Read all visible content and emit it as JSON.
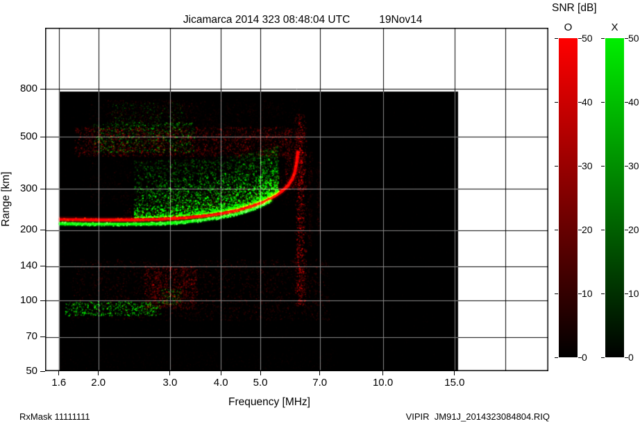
{
  "title": "Jicamarca 2014 323 08:48:04 UTC",
  "date_label": "19Nov14",
  "footer": {
    "left": "RxMask 11111111",
    "right": "VIPIR  JM91J_2014323084804.RIQ"
  },
  "axes": {
    "xlabel": "Frequency [MHz]",
    "ylabel": "Range [km]",
    "x_ticks": [
      1.6,
      2.0,
      3.0,
      4.0,
      5.0,
      7.0,
      10.0,
      15.0
    ],
    "x_tick_labels": [
      "1.6",
      "2.0",
      "3.0",
      "4.0",
      "5.0",
      "7.0",
      "10.0",
      "15.0"
    ],
    "grid_x": [
      1.6,
      2.0,
      3.0,
      4.0,
      5.0,
      7.0,
      10.0,
      15.0,
      20.0
    ],
    "y_ticks": [
      50,
      70,
      100,
      140,
      200,
      300,
      500,
      800
    ]
  },
  "colorbar": {
    "title": "SNR [dB]",
    "o_label": "O",
    "x_label": "X",
    "ticks": [
      0,
      10,
      20,
      30,
      40,
      50
    ],
    "max": 50,
    "o_color": "#ff0000",
    "x_color": "#00ee00"
  },
  "chart_data": {
    "type": "heatmap",
    "title": "Jicamarca ionogram 2014 day 323 08:48:04 UTC",
    "xlabel": "Frequency [MHz]",
    "ylabel": "Range [km]",
    "x_scale": "log",
    "y_scale": "log",
    "xlim": [
      1.48,
      25.5
    ],
    "ylim": [
      50,
      1460
    ],
    "snr_range_dB": [
      0,
      50
    ],
    "modes": [
      {
        "name": "O",
        "color": "#ff0000"
      },
      {
        "name": "X",
        "color": "#00ee00"
      }
    ],
    "data_extent": {
      "f": [
        1.6,
        15.3
      ],
      "r": [
        50,
        780
      ]
    },
    "foF2_MHz": 6.25,
    "o_trace_MHz_km": [
      [
        1.6,
        222
      ],
      [
        2.0,
        221
      ],
      [
        2.4,
        221
      ],
      [
        2.8,
        222
      ],
      [
        3.2,
        225
      ],
      [
        3.6,
        229
      ],
      [
        4.0,
        235
      ],
      [
        4.4,
        243
      ],
      [
        4.8,
        254
      ],
      [
        5.1,
        264
      ],
      [
        5.4,
        278
      ],
      [
        5.65,
        293
      ],
      [
        5.85,
        310
      ],
      [
        6.0,
        332
      ],
      [
        6.08,
        355
      ],
      [
        6.14,
        390
      ],
      [
        6.18,
        430
      ]
    ],
    "x_trace_MHz_km": [
      [
        1.6,
        213
      ],
      [
        2.0,
        212
      ],
      [
        2.4,
        212
      ],
      [
        2.8,
        213
      ],
      [
        3.2,
        216
      ],
      [
        3.6,
        221
      ],
      [
        4.0,
        227
      ],
      [
        4.4,
        235
      ],
      [
        4.8,
        246
      ],
      [
        5.05,
        255
      ],
      [
        5.3,
        267
      ]
    ],
    "features": [
      {
        "kind": "speckle",
        "n": 4000,
        "f": [
          1.6,
          15.3
        ],
        "r": [
          52,
          770
        ],
        "color": "#3a0000",
        "size": [
          0.8,
          1.6
        ],
        "alpha": [
          0.03,
          0.1
        ]
      },
      {
        "kind": "speckle",
        "n": 2500,
        "f": [
          1.6,
          7.6
        ],
        "r": [
          52,
          770
        ],
        "color": "#4a0000",
        "size": [
          0.8,
          1.6
        ],
        "alpha": [
          0.04,
          0.14
        ]
      },
      {
        "kind": "speckle",
        "n": 2800,
        "f": [
          1.9,
          6.3
        ],
        "r": [
          255,
          720
        ],
        "color": "#6e0000",
        "size": [
          0.8,
          1.8
        ],
        "alpha": [
          0.04,
          0.2
        ]
      },
      {
        "kind": "speckle",
        "n": 2300,
        "f": [
          1.75,
          5.9
        ],
        "r": [
          412,
          548
        ],
        "color": "#b00000",
        "size": [
          0.8,
          2.2
        ],
        "alpha": [
          0.08,
          0.42
        ]
      },
      {
        "kind": "speckle",
        "n": 750,
        "f": [
          1.95,
          3.45
        ],
        "r": [
          428,
          575
        ],
        "color": "#00b400",
        "size": [
          0.8,
          2.0
        ],
        "alpha": [
          0.12,
          0.65
        ]
      },
      {
        "kind": "speckle",
        "n": 280,
        "f": [
          2.15,
          3.25
        ],
        "r": [
          555,
          700
        ],
        "color": "#00a800",
        "size": [
          0.8,
          1.7
        ],
        "alpha": [
          0.1,
          0.5
        ]
      },
      {
        "kind": "speckle",
        "n": 320,
        "f": [
          2.1,
          3.5
        ],
        "r": [
          545,
          715
        ],
        "color": "#900000",
        "size": [
          0.8,
          1.8
        ],
        "alpha": [
          0.07,
          0.3
        ]
      },
      {
        "kind": "speckle",
        "n": 2600,
        "f": [
          1.72,
          7.4
        ],
        "r": [
          82,
          150
        ],
        "color": "#8a0000",
        "size": [
          0.8,
          2.0
        ],
        "alpha": [
          0.05,
          0.32
        ]
      },
      {
        "kind": "speckle",
        "n": 900,
        "f": [
          2.6,
          3.5
        ],
        "r": [
          92,
          140
        ],
        "color": "#a00000",
        "size": [
          0.9,
          2.3
        ],
        "alpha": [
          0.12,
          0.45
        ]
      },
      {
        "kind": "speckle",
        "n": 560,
        "f": [
          1.66,
          2.85
        ],
        "r": [
          86,
          99
        ],
        "color": "#00c000",
        "size": [
          0.8,
          1.9
        ],
        "alpha": [
          0.25,
          0.9
        ]
      },
      {
        "kind": "speckle",
        "n": 120,
        "f": [
          2.85,
          3.2
        ],
        "r": [
          96,
          112
        ],
        "color": "#00b000",
        "size": [
          0.8,
          1.6
        ],
        "alpha": [
          0.2,
          0.6
        ]
      },
      {
        "kind": "speckle",
        "n": 500,
        "f": [
          1.6,
          7.6
        ],
        "r": [
          51,
          60
        ],
        "color": "#6e0000",
        "size": [
          0.8,
          1.4
        ],
        "alpha": [
          0.04,
          0.16
        ]
      },
      {
        "kind": "stripes",
        "f_list": [
          2.55,
          2.8,
          3.05,
          3.3,
          3.6,
          3.85,
          4.15,
          4.45,
          4.75,
          5.05,
          5.3
        ],
        "fw": 0.035,
        "r": [
          265,
          700
        ],
        "n_each": 110,
        "color": "#7a0000",
        "size": [
          0.8,
          1.5
        ],
        "alpha": [
          0.03,
          0.13
        ]
      },
      {
        "kind": "speckle",
        "n": 520,
        "f": [
          5.75,
          6.5
        ],
        "r": [
          295,
          545
        ],
        "color": "#b40000",
        "size": [
          0.8,
          2.0
        ],
        "alpha": [
          0.08,
          0.4
        ]
      },
      {
        "kind": "vline",
        "f": 6.28,
        "fw": 0.09,
        "n": 950,
        "r": [
          95,
          625
        ],
        "color": "#cc0000",
        "size": [
          0.8,
          2.0
        ],
        "alpha": [
          0.12,
          0.55
        ]
      },
      {
        "kind": "vline",
        "f": 6.62,
        "fw": 0.05,
        "n": 240,
        "r": [
          170,
          430
        ],
        "color": "#960000",
        "size": [
          0.8,
          1.5
        ],
        "alpha": [
          0.06,
          0.28
        ]
      },
      {
        "kind": "vline",
        "f": 6.95,
        "fw": 0.05,
        "n": 170,
        "r": [
          190,
          390
        ],
        "color": "#8a0000",
        "size": [
          0.8,
          1.5
        ],
        "alpha": [
          0.05,
          0.22
        ]
      },
      {
        "kind": "tracecloud",
        "n": 5200,
        "f": [
          2.45,
          5.55
        ],
        "dr": [
          5,
          175
        ],
        "pow": 2.3,
        "color": "#00cc00",
        "size": [
          0.8,
          2.2
        ],
        "alpha": [
          0.12,
          0.95
        ]
      },
      {
        "kind": "tracecloud",
        "n": 1000,
        "f": [
          2.3,
          5.65
        ],
        "dr": [
          4,
          65
        ],
        "pow": 1.8,
        "color": "#c00000",
        "size": [
          0.8,
          1.8
        ],
        "alpha": [
          0.08,
          0.45
        ]
      },
      {
        "kind": "trace",
        "points": "o_trace_MHz_km",
        "color": "#ff0000",
        "strokes": [
          [
            9,
            0.18
          ],
          [
            5,
            0.4
          ],
          [
            2.8,
            1.0
          ]
        ],
        "core": [
          5.3,
          6.18,
          3.2,
          1.0
        ]
      },
      {
        "kind": "trace",
        "points": "x_trace_MHz_km",
        "color": "#00ff00",
        "strokes": [
          [
            8,
            0.16
          ],
          [
            4,
            0.38
          ],
          [
            2.6,
            0.95
          ]
        ],
        "core": [
          1.6,
          3.7,
          3.6,
          1.0
        ]
      },
      {
        "kind": "sparkle",
        "points": "x_trace_MHz_km",
        "n": 420,
        "dr": [
          -4,
          3
        ],
        "color": "#33ff33",
        "size": [
          1.0,
          2.4
        ],
        "alpha": [
          0.4,
          1.0
        ]
      },
      {
        "kind": "sparkle",
        "points": "o_trace_MHz_km",
        "n": 300,
        "dr": [
          -3,
          4
        ],
        "color": "#ff2200",
        "size": [
          1.0,
          2.2
        ],
        "alpha": [
          0.3,
          0.9
        ]
      }
    ]
  }
}
